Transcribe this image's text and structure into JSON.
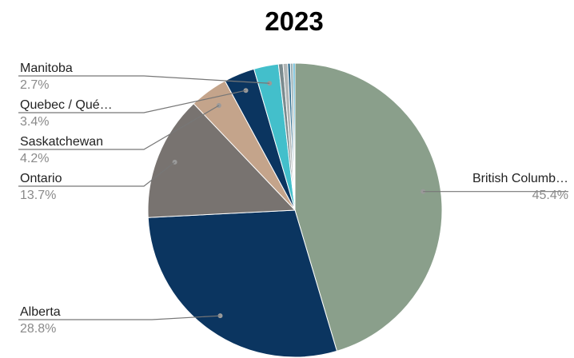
{
  "chart_data": {
    "type": "pie",
    "title": "2023",
    "slices": [
      {
        "label": "British Columb…",
        "value": 45.4,
        "display": "45.4%",
        "color": "#8a9f8b"
      },
      {
        "label": "Alberta",
        "value": 28.8,
        "display": "28.8%",
        "color": "#0b3560"
      },
      {
        "label": "Ontario",
        "value": 13.7,
        "display": "13.7%",
        "color": "#787370"
      },
      {
        "label": "Saskatchewan",
        "value": 4.2,
        "display": "4.2%",
        "color": "#c4a48b"
      },
      {
        "label": "Quebec / Qué…",
        "value": 3.4,
        "display": "3.4%",
        "color": "#0b3560"
      },
      {
        "label": "Manitoba",
        "value": 2.7,
        "display": "2.7%",
        "color": "#43bfcb"
      },
      {
        "label": "",
        "value": 0.5,
        "display": "",
        "color": "#7a8a8e"
      },
      {
        "label": "",
        "value": 0.5,
        "display": "",
        "color": "#b0b5b5"
      },
      {
        "label": "",
        "value": 0.3,
        "display": "",
        "color": "#2f6d8e"
      },
      {
        "label": "",
        "value": 0.3,
        "display": "",
        "color": "#9bb0b5"
      },
      {
        "label": "",
        "value": 0.2,
        "display": "",
        "color": "#2fa0c8"
      }
    ]
  }
}
